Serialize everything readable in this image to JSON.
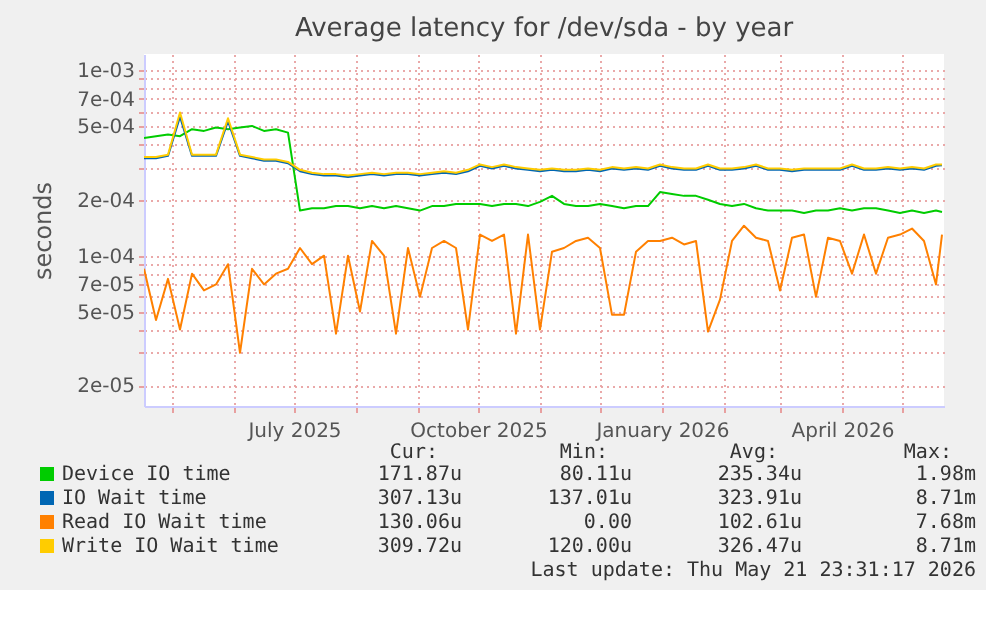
{
  "chart_data": {
    "type": "line",
    "title": "Average latency for /dev/sda - by year",
    "ylabel": "seconds",
    "log": "y",
    "grid": true,
    "legend": "bottom",
    "xlim": [
      "2025-04-17",
      "2026-05-22"
    ],
    "xticks": [
      {
        "value": "2025-05-01",
        "label": null
      },
      {
        "value": "2025-06-01",
        "label": null
      },
      {
        "value": "2025-07-01",
        "label": "July 2025"
      },
      {
        "value": "2025-08-01",
        "label": null
      },
      {
        "value": "2025-09-01",
        "label": null
      },
      {
        "value": "2025-10-01",
        "label": "October 2025"
      },
      {
        "value": "2025-11-01",
        "label": null
      },
      {
        "value": "2025-12-01",
        "label": null
      },
      {
        "value": "2026-01-01",
        "label": "January 2026"
      },
      {
        "value": "2026-02-01",
        "label": null
      },
      {
        "value": "2026-03-01",
        "label": null
      },
      {
        "value": "2026-04-01",
        "label": "April 2026"
      },
      {
        "value": "2026-05-01",
        "label": null
      }
    ],
    "ylim": [
      1.55e-05,
      0.00122
    ],
    "yticks": [
      {
        "value": 2e-05,
        "label": "2e-05"
      },
      {
        "value": 3e-05,
        "label": null
      },
      {
        "value": 4e-05,
        "label": null
      },
      {
        "value": 5e-05,
        "label": "5e-05"
      },
      {
        "value": 6e-05,
        "label": null
      },
      {
        "value": 7e-05,
        "label": "7e-05"
      },
      {
        "value": 8e-05,
        "label": null
      },
      {
        "value": 9e-05,
        "label": null
      },
      {
        "value": 0.0001,
        "label": "1e-04"
      },
      {
        "value": 0.0002,
        "label": "2e-04"
      },
      {
        "value": 0.0003,
        "label": null
      },
      {
        "value": 0.0004,
        "label": null
      },
      {
        "value": 0.0005,
        "label": "5e-04"
      },
      {
        "value": 0.0006,
        "label": null
      },
      {
        "value": 0.0007,
        "label": "7e-04"
      },
      {
        "value": 0.0008,
        "label": null
      },
      {
        "value": 0.0009,
        "label": null
      },
      {
        "value": 0.001,
        "label": "1e-03"
      }
    ],
    "x": [
      "2025-04-17",
      "2025-04-23",
      "2025-04-29",
      "2025-05-05",
      "2025-05-11",
      "2025-05-17",
      "2025-05-23",
      "2025-05-29",
      "2025-06-04",
      "2025-06-10",
      "2025-06-16",
      "2025-06-22",
      "2025-06-28",
      "2025-07-04",
      "2025-07-10",
      "2025-07-16",
      "2025-07-22",
      "2025-07-28",
      "2025-08-03",
      "2025-08-09",
      "2025-08-15",
      "2025-08-21",
      "2025-08-27",
      "2025-09-02",
      "2025-09-08",
      "2025-09-14",
      "2025-09-20",
      "2025-09-26",
      "2025-10-02",
      "2025-10-08",
      "2025-10-14",
      "2025-10-20",
      "2025-10-26",
      "2025-11-01",
      "2025-11-07",
      "2025-11-13",
      "2025-11-19",
      "2025-11-25",
      "2025-12-01",
      "2025-12-07",
      "2025-12-13",
      "2025-12-19",
      "2025-12-25",
      "2025-12-31",
      "2026-01-06",
      "2026-01-12",
      "2026-01-18",
      "2026-01-24",
      "2026-01-30",
      "2026-02-05",
      "2026-02-11",
      "2026-02-17",
      "2026-02-23",
      "2026-03-01",
      "2026-03-07",
      "2026-03-13",
      "2026-03-19",
      "2026-03-25",
      "2026-03-31",
      "2026-04-06",
      "2026-04-12",
      "2026-04-18",
      "2026-04-24",
      "2026-04-30",
      "2026-05-06",
      "2026-05-12",
      "2026-05-18",
      "2026-05-21"
    ],
    "series": [
      {
        "name": "Device IO time",
        "color": "#00cc00",
        "values": [
          0.00043,
          0.00044,
          0.00045,
          0.00044,
          0.00048,
          0.00047,
          0.00049,
          0.00048,
          0.00049,
          0.0005,
          0.00047,
          0.00048,
          0.00046,
          0.000175,
          0.00018,
          0.00018,
          0.000185,
          0.000185,
          0.00018,
          0.000185,
          0.00018,
          0.000185,
          0.00018,
          0.000175,
          0.000185,
          0.000185,
          0.00019,
          0.00019,
          0.00019,
          0.000185,
          0.00019,
          0.00019,
          0.000185,
          0.000195,
          0.00021,
          0.00019,
          0.000185,
          0.000185,
          0.00019,
          0.000185,
          0.00018,
          0.000185,
          0.000185,
          0.00022,
          0.000215,
          0.00021,
          0.00021,
          0.0002,
          0.00019,
          0.000185,
          0.00019,
          0.00018,
          0.000175,
          0.000175,
          0.000175,
          0.00017,
          0.000175,
          0.000175,
          0.00018,
          0.000175,
          0.00018,
          0.00018,
          0.000175,
          0.00017,
          0.000175,
          0.00017,
          0.000175,
          0.000172
        ]
      },
      {
        "name": "IO Wait time",
        "color": "#0066b3",
        "values": [
          0.000335,
          0.000335,
          0.000345,
          0.00056,
          0.000345,
          0.000345,
          0.000345,
          0.00053,
          0.000345,
          0.000335,
          0.000325,
          0.000325,
          0.000315,
          0.000285,
          0.000275,
          0.00027,
          0.00027,
          0.000265,
          0.00027,
          0.000275,
          0.00027,
          0.000275,
          0.000275,
          0.00027,
          0.000275,
          0.00028,
          0.000275,
          0.000285,
          0.000305,
          0.000295,
          0.000305,
          0.000295,
          0.00029,
          0.000285,
          0.00029,
          0.000285,
          0.000285,
          0.00029,
          0.000285,
          0.000295,
          0.00029,
          0.000295,
          0.00029,
          0.000305,
          0.000295,
          0.00029,
          0.00029,
          0.000305,
          0.00029,
          0.00029,
          0.000295,
          0.000305,
          0.00029,
          0.00029,
          0.000285,
          0.00029,
          0.00029,
          0.00029,
          0.00029,
          0.000305,
          0.00029,
          0.00029,
          0.000295,
          0.00029,
          0.000295,
          0.00029,
          0.000305,
          0.000307
        ]
      },
      {
        "name": "Read IO Wait time",
        "color": "#ff8000",
        "values": [
          8.5e-05,
          4.5e-05,
          7.5e-05,
          4e-05,
          8e-05,
          6.5e-05,
          7e-05,
          9e-05,
          3e-05,
          8.5e-05,
          7e-05,
          8e-05,
          8.5e-05,
          0.00011,
          9e-05,
          0.0001,
          3.8e-05,
          0.0001,
          5e-05,
          0.00012,
          0.0001,
          3.8e-05,
          0.00011,
          6e-05,
          0.00011,
          0.00012,
          0.00011,
          4e-05,
          0.00013,
          0.00012,
          0.00013,
          3.8e-05,
          0.00013,
          4e-05,
          0.000105,
          0.00011,
          0.00012,
          0.000125,
          0.00011,
          4.8e-05,
          4.8e-05,
          0.000105,
          0.00012,
          0.00012,
          0.000125,
          0.000115,
          0.00012,
          3.9e-05,
          5.8e-05,
          0.00012,
          0.000145,
          0.000125,
          0.00012,
          6.5e-05,
          0.000125,
          0.00013,
          6e-05,
          0.000125,
          0.00012,
          8e-05,
          0.00013,
          8e-05,
          0.000125,
          0.00013,
          0.00014,
          0.00012,
          7e-05,
          0.00013
        ]
      },
      {
        "name": "Write IO Wait time",
        "color": "#ffcc00",
        "values": [
          0.00034,
          0.00034,
          0.00035,
          0.00059,
          0.00035,
          0.00035,
          0.00035,
          0.00055,
          0.00035,
          0.00034,
          0.00033,
          0.00033,
          0.00032,
          0.00029,
          0.00028,
          0.000275,
          0.000275,
          0.00027,
          0.000275,
          0.00028,
          0.000275,
          0.00028,
          0.00028,
          0.000275,
          0.00028,
          0.000285,
          0.00028,
          0.00029,
          0.00031,
          0.0003,
          0.00031,
          0.0003,
          0.000295,
          0.00029,
          0.000295,
          0.00029,
          0.00029,
          0.000295,
          0.00029,
          0.0003,
          0.000295,
          0.0003,
          0.000295,
          0.00031,
          0.0003,
          0.000295,
          0.000295,
          0.00031,
          0.000295,
          0.000295,
          0.0003,
          0.00031,
          0.000295,
          0.000295,
          0.00029,
          0.000295,
          0.000295,
          0.000295,
          0.000295,
          0.00031,
          0.000295,
          0.000295,
          0.0003,
          0.000295,
          0.0003,
          0.000295,
          0.00031,
          0.00031
        ]
      }
    ],
    "annotations": [
      "Cur:",
      "Min:",
      "Avg:",
      "Max:",
      "171.87u",
      "80.11u",
      "235.34u",
      "1.98m",
      "307.13u",
      "137.01u",
      "323.91u",
      "8.71m",
      "130.06u",
      "0.00",
      "102.61u",
      "7.68m",
      "309.72u",
      "120.00u",
      "326.47u",
      "8.71m",
      "Last update: Thu May 21 23:31:17 2026"
    ]
  }
}
